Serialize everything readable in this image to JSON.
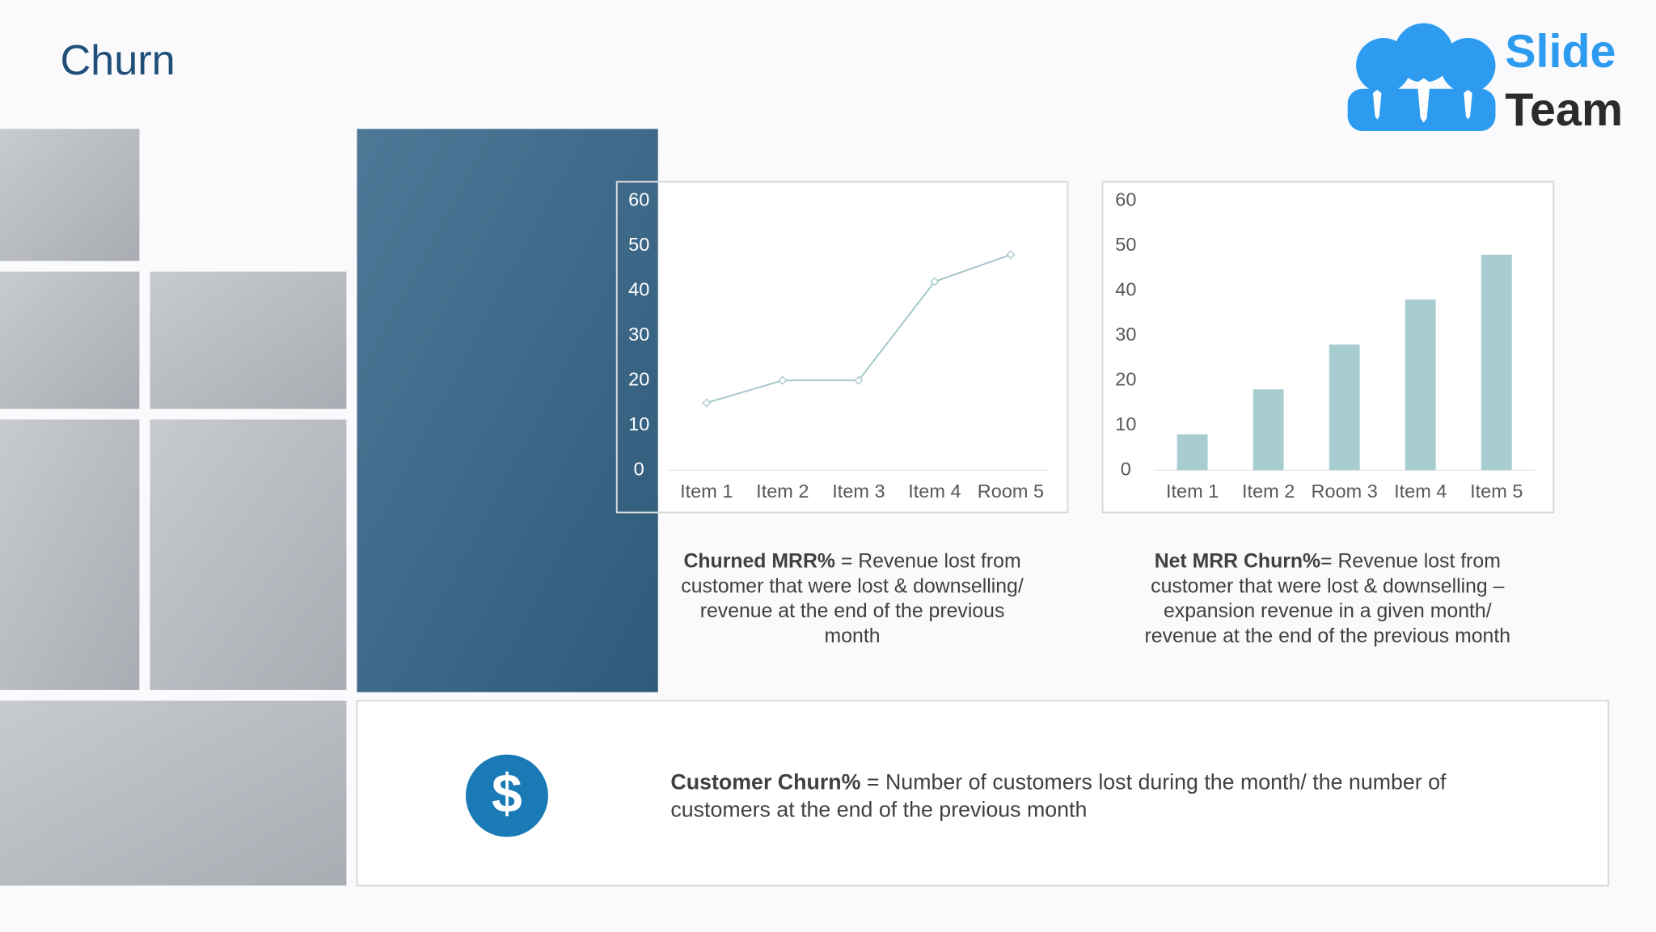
{
  "title": "Churn",
  "logo": {
    "line1": "Slide",
    "line2": "Team"
  },
  "chart_data": [
    {
      "type": "line",
      "categories": [
        "Item 1",
        "Item 2",
        "Item 3",
        "Item 4",
        "Room 5"
      ],
      "values": [
        15,
        20,
        20,
        42,
        48
      ],
      "color": "#a3c6c9",
      "ylim": [
        0,
        60
      ],
      "yticks": [
        0,
        10,
        20,
        30,
        40,
        50,
        60
      ],
      "grid": false
    },
    {
      "type": "bar",
      "categories": [
        "Item 1",
        "Item 2",
        "Room 3",
        "Item 4",
        "Item 5"
      ],
      "values": [
        8,
        18,
        28,
        38,
        48
      ],
      "color": "#a8cdd1",
      "ylim": [
        0,
        60
      ],
      "yticks": [
        0,
        10,
        20,
        30,
        40,
        50,
        60
      ],
      "grid": false
    }
  ],
  "notes": [
    {
      "term": "Churned MRR%",
      "text": " = Revenue lost from customer that were lost & downselling/ revenue at the end of the previous month"
    },
    {
      "term": "Net MRR Churn%",
      "text": "= Revenue lost from customer that were lost & downselling – expansion revenue in a given month/ revenue at the end of the previous month"
    },
    {
      "term": "Customer Churn%",
      "text": " = Number of customers lost during the month/ the number of customers at the end of the previous month"
    }
  ]
}
